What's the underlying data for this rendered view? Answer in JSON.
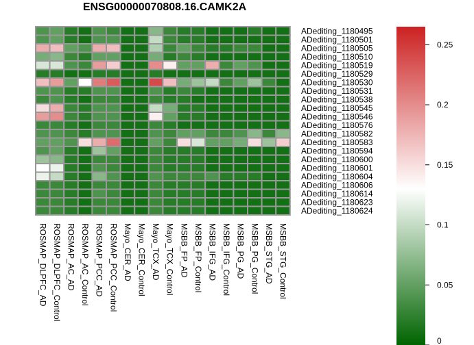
{
  "chart_data": {
    "type": "heatmap",
    "title": "ENSG00000070808.16.CAMK2A",
    "rows": [
      "ADediting_1180495",
      "ADediting_1180501",
      "ADediting_1180505",
      "ADediting_1180510",
      "ADediting_1180519",
      "ADediting_1180529",
      "ADediting_1180530",
      "ADediting_1180531",
      "ADediting_1180538",
      "ADediting_1180545",
      "ADediting_1180546",
      "ADediting_1180576",
      "ADediting_1180582",
      "ADediting_1180583",
      "ADediting_1180594",
      "ADediting_1180600",
      "ADediting_1180601",
      "ADediting_1180604",
      "ADediting_1180606",
      "ADediting_1180614",
      "ADediting_1180623",
      "ADediting_1180624"
    ],
    "columns": [
      "ROSMAP_DLPFC_AD",
      "ROSMAP_DLPFC_Control",
      "ROSMAP_AC_AD",
      "ROSMAP_AC_Control",
      "ROSMAP_PCC_AD",
      "ROSMAP_PCC_Control",
      "Mayo_CER_AD",
      "Mayo_CER_Control",
      "Mayo_TCX_AD",
      "Mayo_TCX_Control",
      "MSBB_FP_AD",
      "MSBB_FP_Control",
      "MSBB_IFG_AD",
      "MSBB_IFG_Control",
      "MSBB_PG_AD",
      "MSBB_PG_Control",
      "MSBB_STG_AD",
      "MSBB_STG_Control"
    ],
    "values": [
      [
        0.04,
        0.05,
        0.02,
        0.01,
        0.04,
        0.03,
        0.01,
        0.01,
        0.07,
        0.03,
        0.02,
        0.02,
        0.01,
        0.01,
        0.01,
        0.02,
        0.01,
        0.01
      ],
      [
        0.04,
        0.05,
        0.02,
        0.01,
        0.04,
        0.04,
        0.01,
        0.01,
        0.1,
        0.03,
        0.02,
        0.02,
        0.01,
        0.01,
        0.01,
        0.01,
        0.01,
        0.01
      ],
      [
        0.18,
        0.17,
        0.05,
        0.04,
        0.18,
        0.17,
        0.01,
        0.01,
        0.09,
        0.03,
        0.05,
        0.03,
        0.02,
        0.02,
        0.03,
        0.03,
        0.01,
        0.01
      ],
      [
        0.06,
        0.07,
        0.03,
        0.02,
        0.05,
        0.05,
        0.01,
        0.01,
        0.06,
        0.02,
        0.03,
        0.02,
        0.01,
        0.01,
        0.01,
        0.01,
        0.01,
        0.01
      ],
      [
        0.11,
        0.11,
        0.04,
        0.03,
        0.19,
        0.16,
        0.01,
        0.01,
        0.2,
        0.14,
        0.05,
        0.05,
        0.18,
        0.03,
        0.05,
        0.04,
        0.01,
        0.01
      ],
      [
        0.02,
        0.02,
        0.01,
        0.01,
        0.02,
        0.02,
        0.01,
        0.01,
        0.02,
        0.01,
        0.01,
        0.01,
        0.01,
        0.01,
        0.01,
        0.01,
        0.01,
        0.01
      ],
      [
        0.17,
        0.19,
        0.05,
        0.13,
        0.21,
        0.23,
        0.01,
        0.01,
        0.24,
        0.17,
        0.06,
        0.08,
        0.1,
        0.03,
        0.05,
        0.08,
        0.03,
        0.01
      ],
      [
        0.04,
        0.04,
        0.02,
        0.02,
        0.04,
        0.04,
        0.01,
        0.01,
        0.04,
        0.02,
        0.03,
        0.02,
        0.01,
        0.01,
        0.01,
        0.01,
        0.01,
        0.01
      ],
      [
        0.03,
        0.04,
        0.02,
        0.01,
        0.03,
        0.03,
        0.01,
        0.01,
        0.03,
        0.02,
        0.02,
        0.01,
        0.01,
        0.01,
        0.01,
        0.01,
        0.01,
        0.01
      ],
      [
        0.15,
        0.18,
        0.03,
        0.02,
        0.04,
        0.04,
        0.01,
        0.01,
        0.1,
        0.06,
        0.02,
        0.02,
        0.01,
        0.01,
        0.01,
        0.01,
        0.01,
        0.01
      ],
      [
        0.19,
        0.2,
        0.03,
        0.02,
        0.04,
        0.04,
        0.01,
        0.01,
        0.14,
        0.05,
        0.02,
        0.02,
        0.01,
        0.01,
        0.01,
        0.01,
        0.01,
        0.01
      ],
      [
        0.03,
        0.03,
        0.02,
        0.01,
        0.03,
        0.03,
        0.01,
        0.01,
        0.03,
        0.02,
        0.01,
        0.01,
        0.01,
        0.01,
        0.01,
        0.01,
        0.01,
        0.01
      ],
      [
        0.04,
        0.04,
        0.03,
        0.02,
        0.04,
        0.04,
        0.01,
        0.01,
        0.04,
        0.03,
        0.05,
        0.05,
        0.03,
        0.03,
        0.04,
        0.07,
        0.03,
        0.07
      ],
      [
        0.05,
        0.05,
        0.04,
        0.15,
        0.18,
        0.22,
        0.01,
        0.01,
        0.05,
        0.03,
        0.15,
        0.11,
        0.05,
        0.05,
        0.06,
        0.15,
        0.08,
        0.16
      ],
      [
        0.04,
        0.05,
        0.02,
        0.01,
        0.08,
        0.05,
        0.01,
        0.01,
        0.03,
        0.02,
        0.02,
        0.02,
        0.01,
        0.01,
        0.01,
        0.01,
        0.01,
        0.01
      ],
      [
        0.08,
        0.07,
        0.02,
        0.01,
        0.03,
        0.03,
        0.01,
        0.01,
        0.03,
        0.02,
        0.02,
        0.02,
        0.01,
        0.01,
        0.01,
        0.01,
        0.01,
        0.01
      ],
      [
        0.13,
        0.12,
        0.02,
        0.01,
        0.04,
        0.03,
        0.01,
        0.01,
        0.03,
        0.02,
        0.02,
        0.02,
        0.01,
        0.01,
        0.01,
        0.01,
        0.01,
        0.01
      ],
      [
        0.12,
        0.1,
        0.02,
        0.01,
        0.07,
        0.04,
        0.01,
        0.01,
        0.04,
        0.03,
        0.03,
        0.03,
        0.04,
        0.02,
        0.02,
        0.02,
        0.01,
        0.01
      ],
      [
        0.03,
        0.03,
        0.02,
        0.01,
        0.03,
        0.03,
        0.01,
        0.01,
        0.03,
        0.02,
        0.02,
        0.02,
        0.01,
        0.01,
        0.01,
        0.01,
        0.01,
        0.01
      ],
      [
        0.03,
        0.03,
        0.02,
        0.01,
        0.04,
        0.03,
        0.01,
        0.01,
        0.03,
        0.02,
        0.02,
        0.02,
        0.01,
        0.01,
        0.01,
        0.01,
        0.01,
        0.01
      ],
      [
        0.03,
        0.03,
        0.02,
        0.01,
        0.03,
        0.03,
        0.01,
        0.01,
        0.03,
        0.02,
        0.02,
        0.02,
        0.01,
        0.01,
        0.01,
        0.01,
        0.01,
        0.01
      ],
      [
        0.03,
        0.03,
        0.02,
        0.01,
        0.03,
        0.03,
        0.01,
        0.01,
        0.03,
        0.02,
        0.02,
        0.02,
        0.01,
        0.01,
        0.01,
        0.01,
        0.01,
        0.01
      ]
    ],
    "color_scale": {
      "min": 0,
      "max": 0.265,
      "low": "#006400",
      "mid": "#ffffff",
      "high": "#cc2222",
      "mid_value": 0.13
    },
    "legend_ticks": [
      "0",
      "0.05",
      "0.1",
      "0.15",
      "0.2",
      "0.25"
    ],
    "legend_tick_values": [
      0,
      0.05,
      0.1,
      0.15,
      0.2,
      0.25
    ],
    "legend_placement": "right"
  }
}
